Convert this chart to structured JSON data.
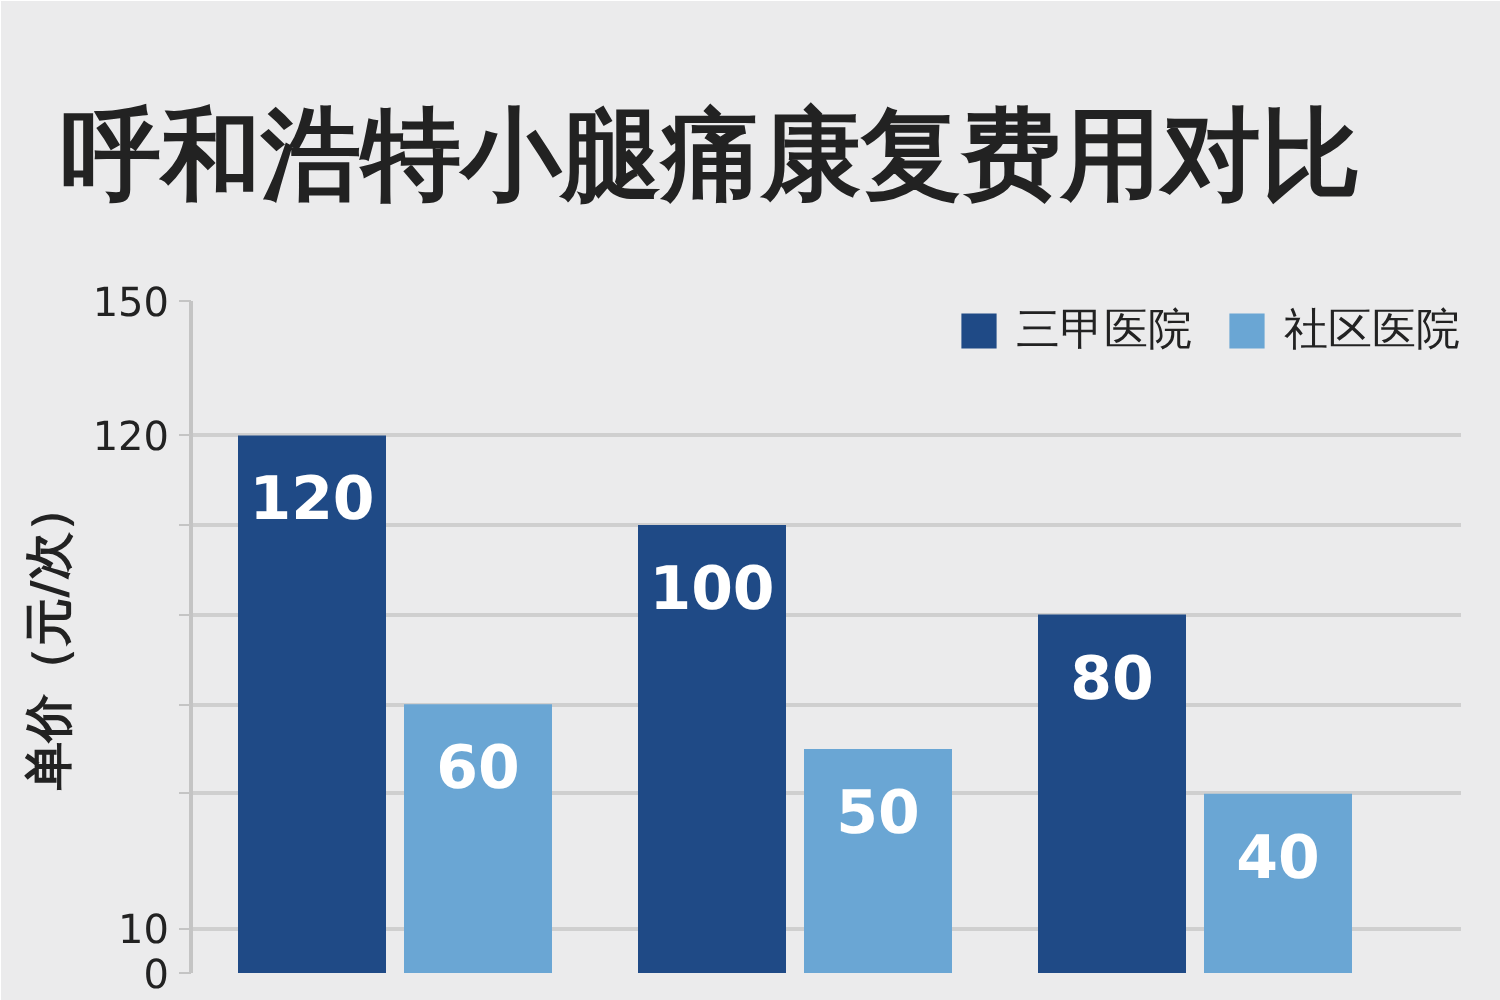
{
  "chart_data": {
    "type": "bar",
    "title": "呼和浩特小腿痛康复费用对比",
    "ylabel": "单价（元/次）",
    "categories": [
      null,
      null,
      null
    ],
    "series": [
      {
        "name": "三甲医院",
        "color": "#1f4a86",
        "values": [
          120,
          100,
          80
        ]
      },
      {
        "name": "社区医院",
        "color": "#6aa6d4",
        "values": [
          60,
          50,
          40
        ]
      }
    ],
    "ylim": [
      0,
      150
    ],
    "yticks": [
      0,
      10,
      {
        "value": 40,
        "label": null
      },
      {
        "value": 60,
        "label": null
      },
      {
        "value": 80,
        "label": null
      },
      {
        "value": 100,
        "label": null
      },
      120,
      150
    ],
    "data_labels": true,
    "grid": "y",
    "legend": "top right",
    "tick_labels": "y"
  }
}
